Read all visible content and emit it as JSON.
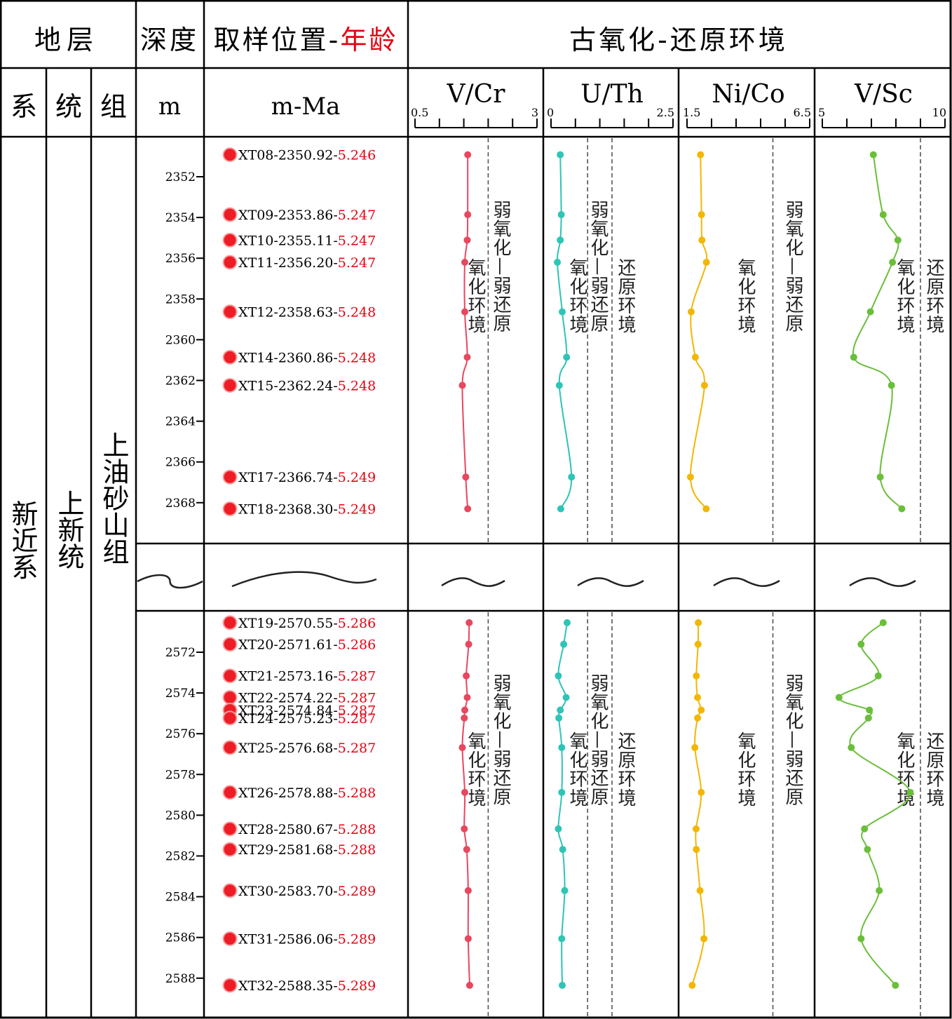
{
  "header": {
    "stratum": "地层",
    "depth": "深度",
    "sampling_prefix": "取样位置-",
    "sampling_age": "年龄",
    "paleo_env": "古氧化-还原环境",
    "system": "系",
    "series": "统",
    "formation": "组",
    "depth_unit": "m",
    "sample_unit": "m-Ma"
  },
  "strata": {
    "system": "新近系",
    "series": "上新统",
    "formation": "上油砂山组"
  },
  "colors": {
    "sample_age_red": "#e60012",
    "v_cr": "#e8475f",
    "u_th": "#2ec4b6",
    "ni_co": "#f2b705",
    "v_sc": "#6abf3a",
    "dot_red": "#ee1c25",
    "line": "#000000",
    "dash": "#555555"
  },
  "depth_ticks_upper": [
    "2352",
    "2354",
    "2356",
    "2358",
    "2360",
    "2362",
    "2364",
    "2366",
    "2368"
  ],
  "depth_ticks_lower": [
    "2572",
    "2574",
    "2576",
    "2578",
    "2580",
    "2582",
    "2584",
    "2586",
    "2588"
  ],
  "samples_upper": [
    {
      "id": "XT08",
      "depth": "2350.92",
      "age": "5.246",
      "d": 2350.92
    },
    {
      "id": "XT09",
      "depth": "2353.86",
      "age": "5.247",
      "d": 2353.86
    },
    {
      "id": "XT10",
      "depth": "2355.11",
      "age": "5.247",
      "d": 2355.11
    },
    {
      "id": "XT11",
      "depth": "2356.20",
      "age": "5.247",
      "d": 2356.2
    },
    {
      "id": "XT12",
      "depth": "2358.63",
      "age": "5.248",
      "d": 2358.63
    },
    {
      "id": "XT14",
      "depth": "2360.86",
      "age": "5.248",
      "d": 2360.86
    },
    {
      "id": "XT15",
      "depth": "2362.24",
      "age": "5.248",
      "d": 2362.24
    },
    {
      "id": "XT17",
      "depth": "2366.74",
      "age": "5.249",
      "d": 2366.74
    },
    {
      "id": "XT18",
      "depth": "2368.30",
      "age": "5.249",
      "d": 2368.3
    }
  ],
  "samples_lower": [
    {
      "id": "XT19",
      "depth": "2570.55",
      "age": "5.286",
      "d": 2570.55
    },
    {
      "id": "XT20",
      "depth": "2571.61",
      "age": "5.286",
      "d": 2571.61
    },
    {
      "id": "XT21",
      "depth": "2573.16",
      "age": "5.287",
      "d": 2573.16
    },
    {
      "id": "XT22",
      "depth": "2574.22",
      "age": "5.287",
      "d": 2574.22
    },
    {
      "id": "XT23",
      "depth": "2574.84",
      "age": "5.287",
      "d": 2574.84
    },
    {
      "id": "XT24",
      "depth": "2575.23",
      "age": "5.287",
      "d": 2575.23
    },
    {
      "id": "XT25",
      "depth": "2576.68",
      "age": "5.287",
      "d": 2576.68
    },
    {
      "id": "XT26",
      "depth": "2578.88",
      "age": "5.288",
      "d": 2578.88
    },
    {
      "id": "XT28",
      "depth": "2580.67",
      "age": "5.288",
      "d": 2580.67
    },
    {
      "id": "XT29",
      "depth": "2581.68",
      "age": "5.288",
      "d": 2581.68
    },
    {
      "id": "XT30",
      "depth": "2583.70",
      "age": "5.289",
      "d": 2583.7
    },
    {
      "id": "XT31",
      "depth": "2586.06",
      "age": "5.289",
      "d": 2586.06
    },
    {
      "id": "XT32",
      "depth": "2588.35",
      "age": "5.289",
      "d": 2588.35
    }
  ],
  "chart_data": [
    {
      "type": "line",
      "title": "V/Cr",
      "xlim": [
        0.5,
        3
      ],
      "x_tick_labels": [
        "0.5",
        "3"
      ],
      "threshold_lines": [
        2
      ],
      "color": "#e8475f",
      "zone_labels": [
        "氧化环境",
        "弱氧化—弱还原"
      ],
      "upper_depth": [
        2350.92,
        2353.86,
        2355.11,
        2356.2,
        2358.63,
        2360.86,
        2362.24,
        2366.74,
        2368.3
      ],
      "upper_values": [
        1.58,
        1.58,
        1.57,
        1.52,
        1.52,
        1.57,
        1.47,
        1.54,
        1.58
      ],
      "lower_depth": [
        2570.55,
        2571.61,
        2573.16,
        2574.22,
        2574.84,
        2575.23,
        2576.68,
        2578.88,
        2580.67,
        2581.68,
        2583.7,
        2586.06,
        2588.35
      ],
      "lower_values": [
        1.61,
        1.6,
        1.55,
        1.57,
        1.52,
        1.51,
        1.47,
        1.52,
        1.51,
        1.56,
        1.59,
        1.59,
        1.62
      ]
    },
    {
      "type": "line",
      "title": "U/Th",
      "xlim": [
        0,
        2.5
      ],
      "x_tick_labels": [
        "0",
        "2.5"
      ],
      "threshold_lines": [
        0.75,
        1.25
      ],
      "color": "#2ec4b6",
      "zone_labels": [
        "氧化环境",
        "弱氧化—弱还原",
        "还原环境"
      ],
      "upper_depth": [
        2350.92,
        2353.86,
        2355.11,
        2356.2,
        2358.63,
        2360.86,
        2362.24,
        2366.74,
        2368.3
      ],
      "upper_values": [
        0.19,
        0.21,
        0.19,
        0.13,
        0.23,
        0.32,
        0.17,
        0.42,
        0.2
      ],
      "lower_depth": [
        2570.55,
        2571.61,
        2573.16,
        2574.22,
        2574.84,
        2575.23,
        2576.68,
        2578.88,
        2580.67,
        2581.68,
        2583.7,
        2586.06,
        2588.35
      ],
      "lower_values": [
        0.33,
        0.26,
        0.15,
        0.31,
        0.19,
        0.16,
        0.22,
        0.22,
        0.15,
        0.24,
        0.28,
        0.22,
        0.23
      ]
    },
    {
      "type": "line",
      "title": "Ni/Co",
      "xlim": [
        1.5,
        6.5
      ],
      "x_tick_labels": [
        "1.5",
        "6.5"
      ],
      "threshold_lines": [
        5
      ],
      "color": "#f2b705",
      "zone_labels": [
        "氧化环境",
        "弱氧化—弱还原"
      ],
      "upper_depth": [
        2350.92,
        2353.86,
        2355.11,
        2356.2,
        2358.63,
        2360.86,
        2362.24,
        2366.74,
        2368.3
      ],
      "upper_values": [
        2.05,
        2.09,
        2.11,
        2.29,
        1.67,
        1.84,
        2.21,
        1.64,
        2.28
      ],
      "lower_depth": [
        2570.55,
        2571.61,
        2573.16,
        2574.22,
        2574.84,
        2575.23,
        2576.68,
        2578.88,
        2580.67,
        2581.68,
        2583.7,
        2586.06,
        2588.35
      ],
      "lower_values": [
        1.96,
        1.95,
        1.88,
        1.93,
        2.08,
        1.93,
        1.82,
        2.08,
        1.87,
        1.88,
        2.03,
        2.19,
        1.71
      ]
    },
    {
      "type": "line",
      "title": "V/Sc",
      "xlim": [
        5,
        10
      ],
      "x_tick_labels": [
        "5",
        "10"
      ],
      "threshold_lines": [
        9
      ],
      "color": "#6abf3a",
      "zone_labels": [
        "氧化环境",
        "还原环境"
      ],
      "upper_depth": [
        2350.92,
        2353.86,
        2355.11,
        2356.2,
        2358.63,
        2360.86,
        2362.24,
        2366.74,
        2368.3
      ],
      "upper_values": [
        7.08,
        7.48,
        8.08,
        7.86,
        6.96,
        6.28,
        7.82,
        7.36,
        8.24
      ],
      "lower_depth": [
        2570.55,
        2571.61,
        2573.16,
        2574.22,
        2574.84,
        2575.23,
        2576.68,
        2578.88,
        2580.67,
        2581.68,
        2583.7,
        2586.06,
        2588.35
      ],
      "lower_values": [
        7.48,
        6.58,
        7.28,
        5.68,
        6.92,
        6.88,
        6.18,
        8.58,
        6.72,
        6.84,
        7.32,
        6.58,
        7.98
      ]
    }
  ]
}
